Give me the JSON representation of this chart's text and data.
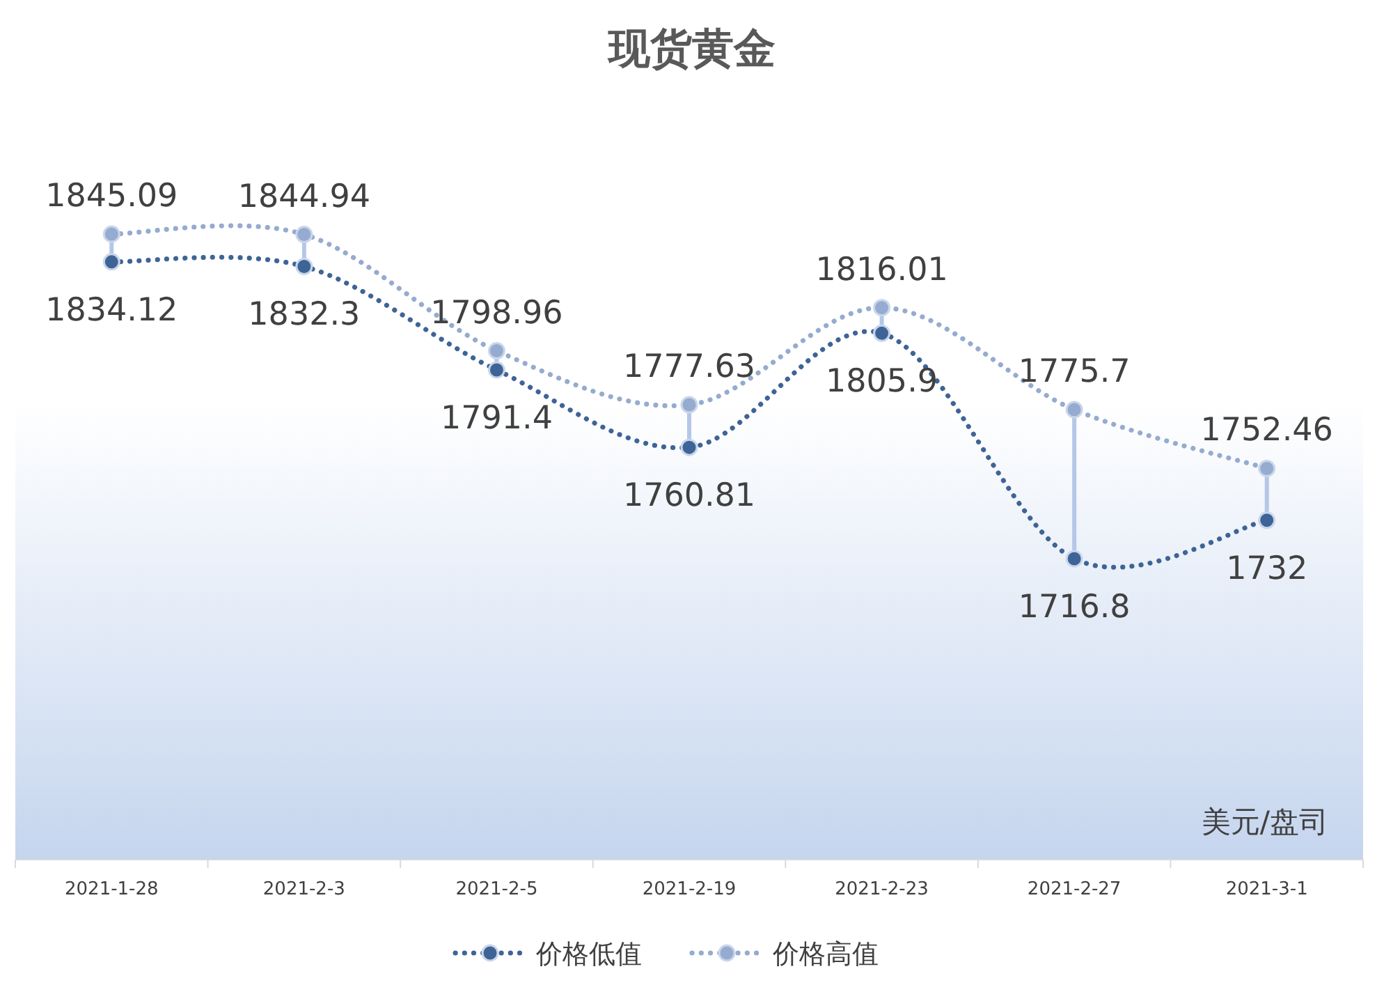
{
  "chart_data": {
    "type": "line",
    "title": "现货黄金",
    "categories": [
      "2021-1-28",
      "2021-2-3",
      "2021-2-5",
      "2021-2-19",
      "2021-2-23",
      "2021-2-27",
      "2021-3-1"
    ],
    "series": [
      {
        "name": "价格低值",
        "color": "#3e6497",
        "values": [
          1834.12,
          1832.3,
          1791.4,
          1760.81,
          1805.9,
          1716.8,
          1732
        ]
      },
      {
        "name": "价格高值",
        "color": "#95abcf",
        "values": [
          1845.09,
          1844.94,
          1798.96,
          1777.63,
          1816.01,
          1775.7,
          1752.46
        ]
      }
    ],
    "data_labels": true,
    "legend": "bottom",
    "marker": "circle",
    "line_style": "dotted",
    "annotations": [
      "美元/盘司"
    ]
  }
}
